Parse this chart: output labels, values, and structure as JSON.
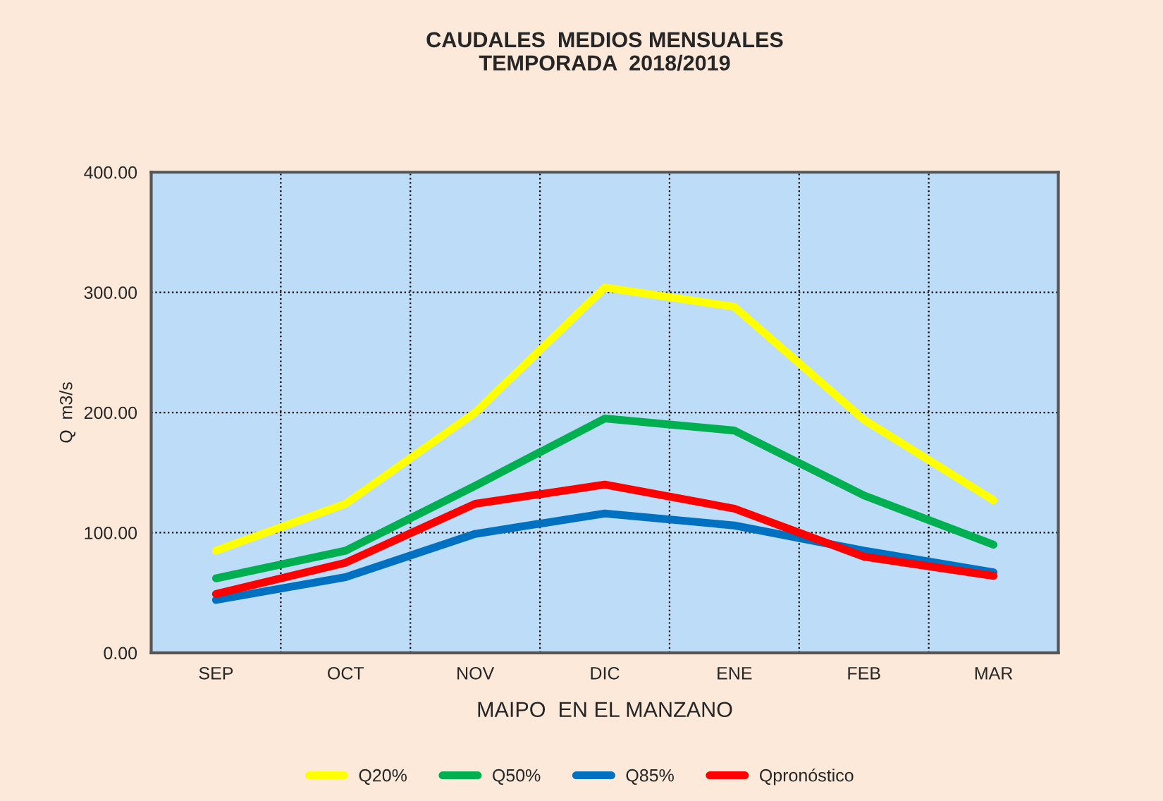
{
  "chart_data": {
    "type": "line",
    "title": "CAUDALES  MEDIOS MENSUALES\nTEMPORADA  2018/2019",
    "xlabel": "MAIPO  EN EL MANZANO",
    "ylabel": "Q  m3/s",
    "categories": [
      "SEP",
      "OCT",
      "NOV",
      "DIC",
      "ENE",
      "FEB",
      "MAR"
    ],
    "series": [
      {
        "name": "Q20%",
        "color": "#ffff00",
        "values": [
          85,
          124,
          200,
          304,
          288,
          194,
          127
        ]
      },
      {
        "name": "Q50%",
        "color": "#00b050",
        "values": [
          62,
          85,
          139,
          195,
          185,
          131,
          90
        ]
      },
      {
        "name": "Q85%",
        "color": "#0070c0",
        "values": [
          44,
          63,
          99,
          116,
          106,
          85,
          67
        ]
      },
      {
        "name": "Qpronóstico",
        "color": "#ff0000",
        "values": [
          49,
          75,
          124,
          140,
          120,
          80,
          64
        ]
      }
    ],
    "ylim": [
      0,
      400
    ],
    "yticks": [
      {
        "value": 0,
        "label": "0.00"
      },
      {
        "value": 100,
        "label": "100.00"
      },
      {
        "value": 200,
        "label": "200.00"
      },
      {
        "value": 300,
        "label": "300.00"
      },
      {
        "value": 400,
        "label": "400.00"
      }
    ],
    "grid": true,
    "legend": "bottom",
    "marker": "none",
    "line_style": "solid"
  }
}
